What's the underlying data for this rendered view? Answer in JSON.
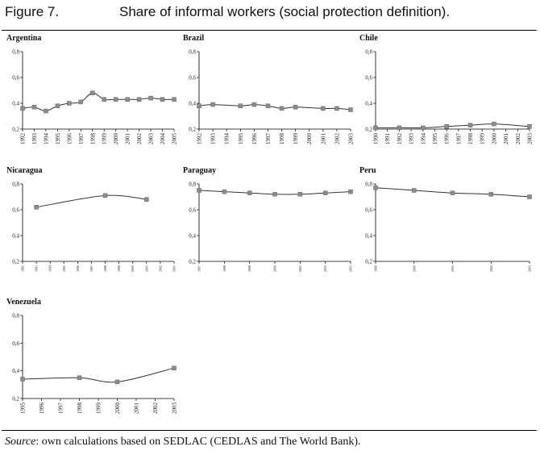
{
  "figure": {
    "label": "Figure 7.",
    "title": "Share of informal workers (social protection definition)."
  },
  "source": {
    "prefix": "Source",
    "text": ": own calculations based on SEDLAC (CEDLAS and The World Bank)."
  },
  "chart_data": [
    {
      "type": "line",
      "title": "Argentina",
      "categories": [
        "1992",
        "1993",
        "1994",
        "1995",
        "1996",
        "1997",
        "1998",
        "1999",
        "2000",
        "2001",
        "2002",
        "2003",
        "2004",
        "2005"
      ],
      "series": [
        {
          "values": [
            0.36,
            0.37,
            0.34,
            0.38,
            0.4,
            0.41,
            0.48,
            0.43,
            0.43,
            0.43,
            0.43,
            0.44,
            0.43,
            0.43
          ]
        }
      ],
      "ylim": [
        0.2,
        0.8
      ],
      "yticks": [
        "0,2",
        "0,4",
        "0,6",
        "0,8"
      ]
    },
    {
      "type": "line",
      "title": "Brazil",
      "categories": [
        "1992",
        "1993",
        "1994",
        "1995",
        "1996",
        "1997",
        "1998",
        "1999",
        "2000",
        "2001",
        "2002",
        "2003"
      ],
      "series": [
        {
          "points": [
            [
              "1992",
              0.38
            ],
            [
              "1993",
              0.39
            ],
            [
              "1995",
              0.38
            ],
            [
              "1996",
              0.39
            ],
            [
              "1997",
              0.38
            ],
            [
              "1998",
              0.36
            ],
            [
              "1999",
              0.37
            ],
            [
              "2001",
              0.36
            ],
            [
              "2002",
              0.36
            ],
            [
              "2003",
              0.35
            ]
          ]
        }
      ],
      "ylim": [
        0.2,
        0.8
      ],
      "yticks": [
        "0,2",
        "0,4",
        "0,6",
        "0,8"
      ]
    },
    {
      "type": "line",
      "title": "Chile",
      "categories": [
        "1990",
        "1991",
        "1992",
        "1993",
        "1994",
        "1995",
        "1996",
        "1997",
        "1998",
        "1999",
        "2000",
        "2001",
        "2002",
        "2003"
      ],
      "series": [
        {
          "points": [
            [
              "1990",
              0.21
            ],
            [
              "1992",
              0.21
            ],
            [
              "1994",
              0.21
            ],
            [
              "1996",
              0.22
            ],
            [
              "1998",
              0.23
            ],
            [
              "2000",
              0.24
            ],
            [
              "2003",
              0.22
            ]
          ]
        }
      ],
      "ylim": [
        0.2,
        0.8
      ],
      "yticks": [
        "0,2",
        "0,4",
        "0,6",
        "0,8"
      ]
    },
    {
      "type": "line",
      "title": "Nicaragua",
      "categories": [
        "1992",
        "1993",
        "1994",
        "1995",
        "1996",
        "1997",
        "1998",
        "1999",
        "2000",
        "2001",
        "2002",
        "2003"
      ],
      "series": [
        {
          "points": [
            [
              "1993",
              0.62
            ],
            [
              "1998",
              0.71
            ],
            [
              "2001",
              0.68
            ]
          ]
        }
      ],
      "ylim": [
        0.2,
        0.8
      ],
      "yticks": [
        "0,2",
        "0,4",
        "0,6",
        "0,8"
      ]
    },
    {
      "type": "line",
      "title": "Paraguay",
      "categories": [
        "1997",
        "1998",
        "1999",
        "2000",
        "2001",
        "2002",
        "2003"
      ],
      "series": [
        {
          "values": [
            0.75,
            0.74,
            0.73,
            0.72,
            0.72,
            0.73,
            0.74
          ]
        }
      ],
      "ylim": [
        0.2,
        0.8
      ],
      "yticks": [
        "0,2",
        "0,4",
        "0,6",
        "0,8"
      ]
    },
    {
      "type": "line",
      "title": "Peru",
      "categories": [
        "1999",
        "2000",
        "2001",
        "2002",
        "2003"
      ],
      "series": [
        {
          "values": [
            0.77,
            0.75,
            0.73,
            0.72,
            0.7
          ]
        }
      ],
      "ylim": [
        0.2,
        0.8
      ],
      "yticks": [
        "0,2",
        "0,4",
        "0,6",
        "0,8"
      ]
    },
    {
      "type": "line",
      "title": "Venezuela",
      "categories": [
        "1995",
        "1996",
        "1997",
        "1998",
        "1999",
        "2000",
        "2001",
        "2002",
        "2003"
      ],
      "series": [
        {
          "points": [
            [
              "1995",
              0.34
            ],
            [
              "1998",
              0.35
            ],
            [
              "2000",
              0.32
            ],
            [
              "2003",
              0.42
            ]
          ]
        }
      ],
      "ylim": [
        0.2,
        0.8
      ],
      "yticks": [
        "0,2",
        "0,4",
        "0,6",
        "0,8"
      ]
    }
  ]
}
